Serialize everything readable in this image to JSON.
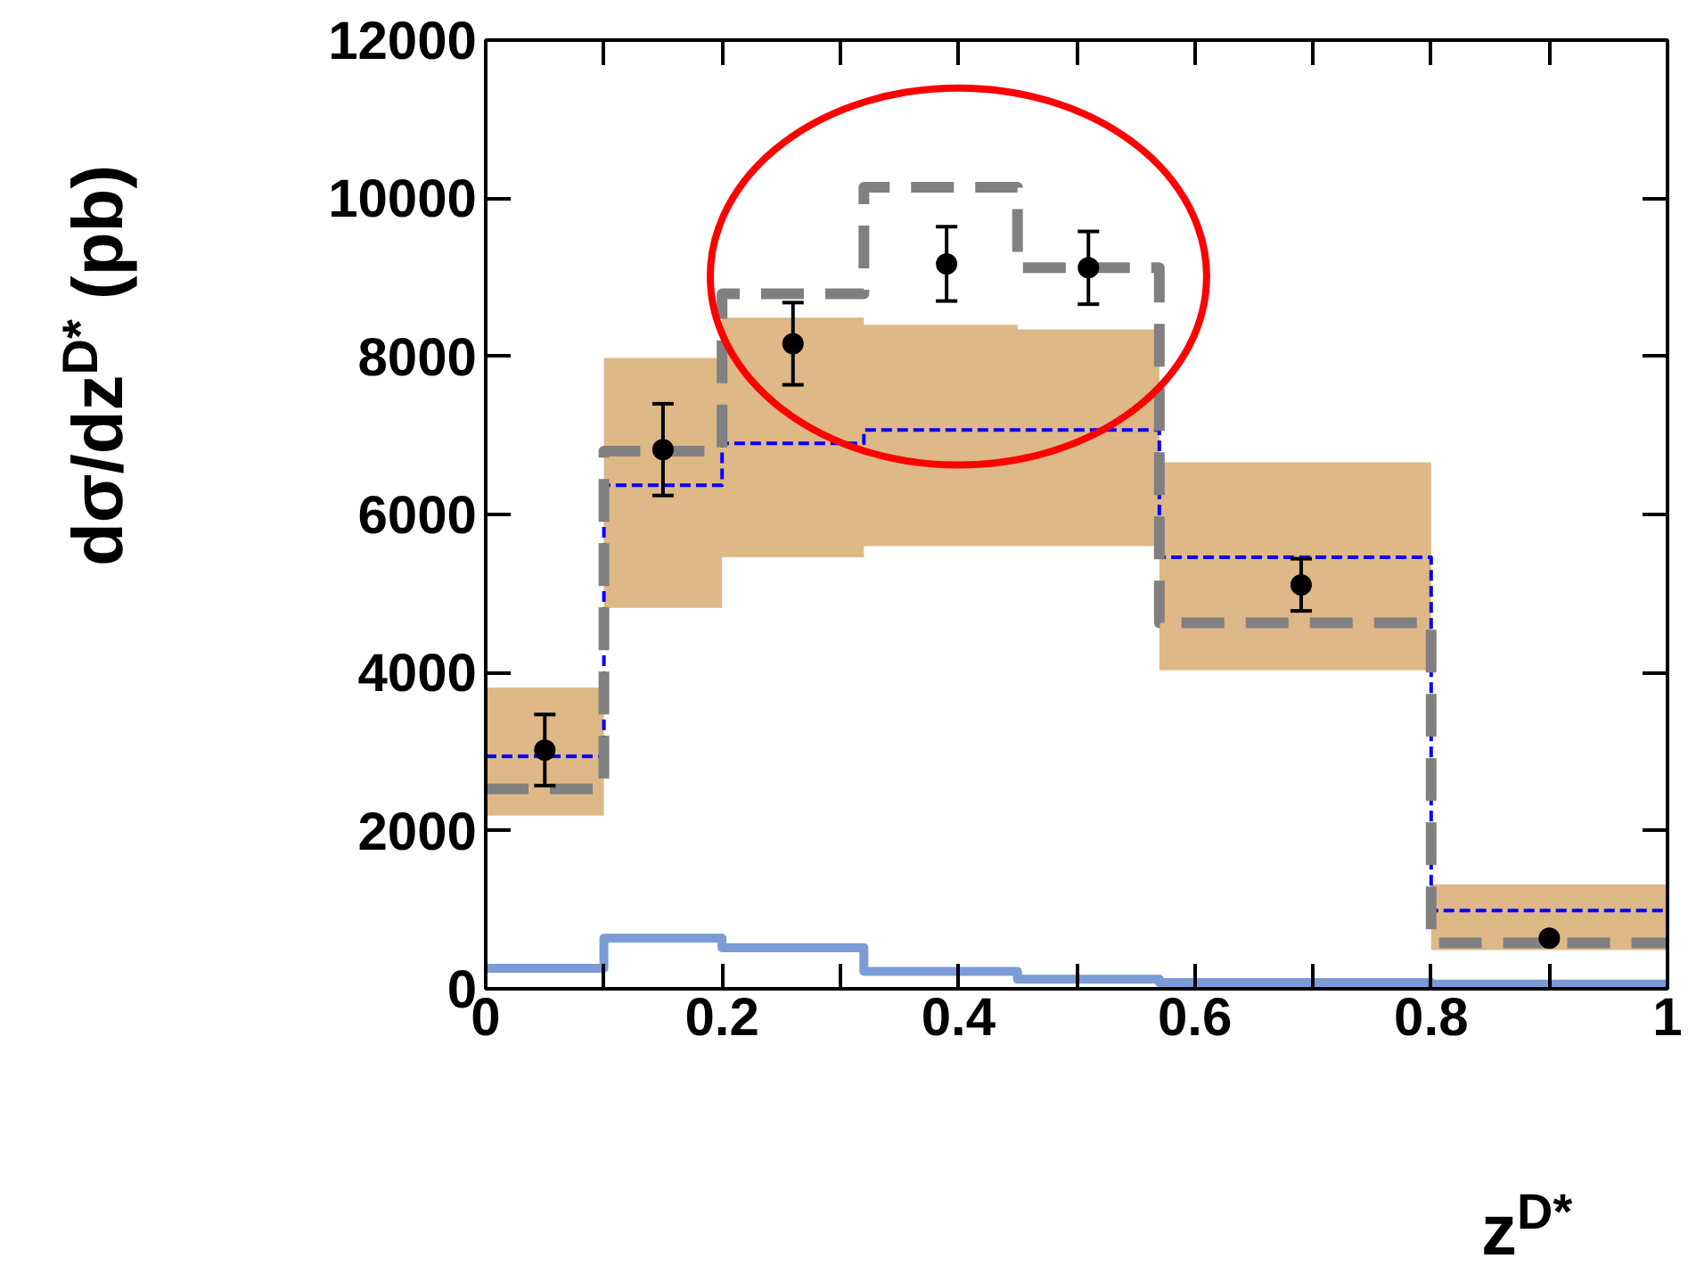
{
  "chart_data": {
    "type": "step",
    "xlabel": "z$^{D*}$",
    "ylabel": "dσ/dz$^{D*}$ (pb)",
    "xlim": [
      0,
      1
    ],
    "ylim": [
      0,
      12000
    ],
    "xticks": [
      0,
      {
        "value": 0.1,
        "label": null
      },
      0.2,
      {
        "value": 0.3,
        "label": null
      },
      0.4,
      {
        "value": 0.5,
        "label": null
      },
      0.6,
      {
        "value": 0.7,
        "label": null
      },
      0.8,
      {
        "value": 0.9,
        "label": null
      },
      1
    ],
    "yticks": [
      0,
      2000,
      4000,
      6000,
      8000,
      10000,
      12000
    ],
    "grid": false,
    "series": [
      {
        "color": "#0000ff",
        "line_style": "dashed",
        "x": [
          0,
          0.1,
          0.2,
          0.32,
          0.45,
          0.57,
          0.8,
          1.0
        ],
        "values": [
          2940,
          6370,
          6900,
          7070,
          7070,
          5460,
          990,
          990
        ],
        "lower": [
          2190,
          4820,
          5460,
          5600,
          5600,
          4030,
          490,
          490
        ],
        "upper": [
          3810,
          7980,
          8490,
          8400,
          8340,
          6660,
          1320,
          1320
        ]
      },
      {
        "color": "#808080",
        "line_style": "dashed",
        "x": [
          0,
          0.1,
          0.2,
          0.32,
          0.45,
          0.57,
          0.8,
          1.0
        ],
        "values": [
          2530,
          6800,
          8790,
          10140,
          9120,
          4630,
          580,
          580
        ]
      },
      {
        "color": "#7b9bd6",
        "line_style": "solid",
        "x": [
          0,
          0.1,
          0.2,
          0.32,
          0.45,
          0.57,
          0.8,
          1.0
        ],
        "values": [
          260,
          640,
          520,
          220,
          120,
          80,
          60,
          60
        ]
      },
      {
        "type": "scatter",
        "color": "#000000",
        "marker": "circle",
        "x": [
          0.05,
          0.15,
          0.26,
          0.39,
          0.51,
          0.69,
          0.9
        ],
        "values": [
          3020,
          6820,
          8160,
          9170,
          9120,
          5110,
          640
        ],
        "errors": [
          450,
          580,
          520,
          470,
          460,
          330,
          null
        ]
      }
    ]
  }
}
